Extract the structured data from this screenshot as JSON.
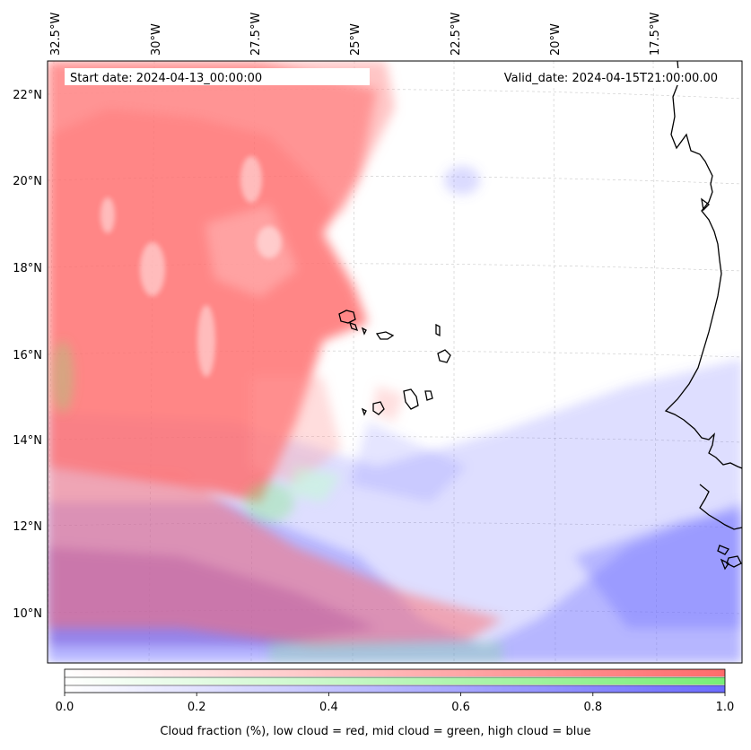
{
  "map": {
    "start_label": "Start date: 2024-04-13_00:00:00",
    "valid_label": "Valid_date: 2024-04-15T21:00:00.00",
    "lon_ticks": [
      "32.5°W",
      "30°W",
      "27.5°W",
      "25°W",
      "22.5°W",
      "20°W",
      "17.5°W"
    ],
    "lat_ticks": [
      "22°N",
      "20°N",
      "18°N",
      "16°N",
      "14°N",
      "12°N",
      "10°N"
    ],
    "layers": [
      {
        "name": "low cloud",
        "color": "#ff6b6b"
      },
      {
        "name": "mid cloud",
        "color": "#77ee77"
      },
      {
        "name": "high cloud",
        "color": "#6b6bff"
      }
    ],
    "colorbar": {
      "ticks": [
        "0.0",
        "0.2",
        "0.4",
        "0.6",
        "0.8",
        "1.0"
      ],
      "min": 0.0,
      "max": 1.0
    },
    "caption": "Cloud fraction (%), low cloud = red, mid cloud = green, high cloud = blue"
  }
}
